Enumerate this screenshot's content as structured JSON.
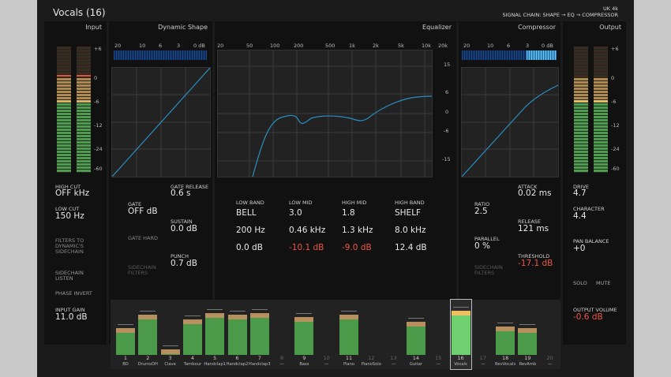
{
  "header": {
    "title": "Vocals (16)",
    "model": "UK 4k",
    "chain": "SIGNAL CHAIN: SHAPE → EQ → COMPRESSOR"
  },
  "input": {
    "title": "Input",
    "scale": [
      "+6",
      "0",
      "-6",
      "-12",
      "-24",
      "-60"
    ],
    "hicut_label": "HIGH CUT",
    "hicut_value": "OFF kHz",
    "locut_label": "LOW CUT",
    "locut_value": "150 Hz",
    "filters_label": "FILTERS TO DYNAMIC'S SIDECHAIN",
    "sidechain_label": "SIDECHAIN LISTEN",
    "phase_label": "PHASE INVERT",
    "gain_label": "INPUT GAIN",
    "gain_value": "11.0 dB"
  },
  "dynamic": {
    "title": "Dynamic Shape",
    "scale": [
      "20",
      "10",
      "6",
      "3",
      "0 dB"
    ],
    "gate_label": "GATE",
    "gate_value": "OFF dB",
    "release_label": "GATE RELEASE",
    "release_value": "0.6 s",
    "sustain_label": "SUSTAIN",
    "sustain_value": "0.0 dB",
    "gatehard_label": "GATE HARD",
    "punch_label": "PUNCH",
    "punch_value": "0.7 dB",
    "sidechain_filters_label": "SIDECHAIN FILTERS"
  },
  "eq": {
    "title": "Equalizer",
    "freqs": [
      "20",
      "50",
      "100",
      "200",
      "500",
      "1k",
      "2k",
      "5k",
      "10k",
      "20k"
    ],
    "db": [
      "15",
      "6",
      "0",
      "-6",
      "-15"
    ],
    "bands": [
      {
        "label": "LOW BAND",
        "type": "BELL",
        "freq": "200 Hz",
        "gain": "0.0 dB",
        "red": false
      },
      {
        "label": "LOW MID",
        "type": "3.0",
        "freq": "0.46 kHz",
        "gain": "-10.1 dB",
        "red": true
      },
      {
        "label": "HIGH MID",
        "type": "1.8",
        "freq": "1.3 kHz",
        "gain": "-9.0 dB",
        "red": true
      },
      {
        "label": "HIGH BAND",
        "type": "SHELF",
        "freq": "8.0 kHz",
        "gain": "12.4 dB",
        "red": false
      }
    ]
  },
  "compressor": {
    "title": "Compressor",
    "scale": [
      "20",
      "10",
      "6",
      "3",
      "0 dB"
    ],
    "ratio_label": "RATIO",
    "ratio_value": "2.5",
    "attack_label": "ATTACK",
    "attack_value": "0.02 ms",
    "release_label": "RELEASE",
    "release_value": "121 ms",
    "parallel_label": "PARALLEL",
    "parallel_value": "0 %",
    "threshold_label": "THRESHOLD",
    "threshold_value": "-17.1 dB",
    "sidechain_filters_label": "SIDECHAIN FILTERS"
  },
  "output": {
    "title": "Output",
    "scale": [
      "+6",
      "0",
      "-6",
      "-12",
      "-24",
      "-60"
    ],
    "drive_label": "DRIVE",
    "drive_value": "4.7",
    "character_label": "CHARACTER",
    "character_value": "4.4",
    "pan_label": "PAN BALANCE",
    "pan_value": "+0",
    "solo_label": "SOLO",
    "mute_label": "MUTE",
    "volume_label": "OUTPUT VOLUME",
    "volume_value": "-0.6 dB"
  },
  "channels": [
    {
      "num": "1",
      "name": "BD",
      "level": 0.55
    },
    {
      "num": "2",
      "name": "DrumsOH",
      "level": 0.82
    },
    {
      "num": "3",
      "name": "Clave",
      "level": 0.12
    },
    {
      "num": "4",
      "name": "Tambour",
      "level": 0.72
    },
    {
      "num": "5",
      "name": "Handclap1",
      "level": 0.85
    },
    {
      "num": "6",
      "name": "Handclap2",
      "level": 0.82
    },
    {
      "num": "7",
      "name": "Handclap3",
      "level": 0.85
    },
    {
      "num": "8",
      "name": "—",
      "level": 0
    },
    {
      "num": "9",
      "name": "Bass",
      "level": 0.78
    },
    {
      "num": "10",
      "name": "—",
      "level": 0
    },
    {
      "num": "11",
      "name": "Piano",
      "level": 0.82
    },
    {
      "num": "12",
      "name": "PianoSolo",
      "level": 0
    },
    {
      "num": "13",
      "name": "—",
      "level": 0
    },
    {
      "num": "14",
      "name": "Guitar",
      "level": 0.68
    },
    {
      "num": "15",
      "name": "—",
      "level": 0
    },
    {
      "num": "16",
      "name": "Vocals",
      "level": 0.9
    },
    {
      "num": "17",
      "name": "—",
      "level": 0
    },
    {
      "num": "18",
      "name": "RevVocals",
      "level": 0.58
    },
    {
      "num": "19",
      "name": "RevAmb",
      "level": 0.55
    },
    {
      "num": "20",
      "name": "—",
      "level": 0
    }
  ],
  "colors": {
    "accent": "#2a8fc0",
    "red": "#ee5544",
    "meter_green": "#4e9a4e",
    "meter_orange": "#c8904a"
  }
}
